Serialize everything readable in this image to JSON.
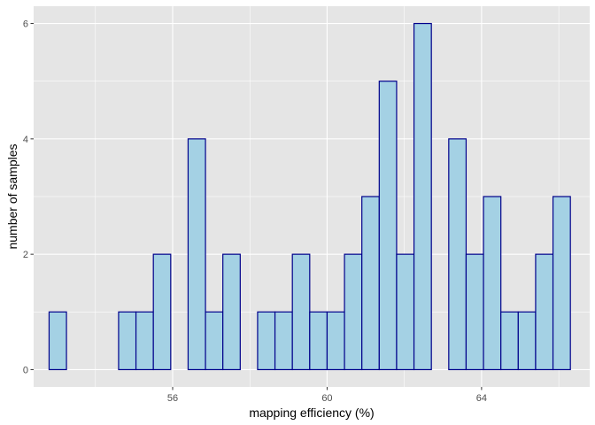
{
  "chart_data": {
    "type": "bar",
    "subtype": "histogram",
    "title": "",
    "xlabel": "mapping efficiency (%)",
    "ylabel": "number of samples",
    "xlim": [
      52.4,
      66.8
    ],
    "ylim": [
      -0.3,
      6.3
    ],
    "x_ticks": [
      56,
      60,
      64
    ],
    "x_tick_labels": [
      "56",
      "60",
      "64"
    ],
    "y_ticks": [
      0,
      2,
      4,
      6
    ],
    "y_tick_labels": [
      "0",
      "2",
      "4",
      "6"
    ],
    "bin_start": 52.8,
    "bin_width": 0.45,
    "values": [
      1,
      0,
      0,
      0,
      1,
      1,
      2,
      0,
      4,
      1,
      2,
      0,
      1,
      1,
      2,
      1,
      1,
      2,
      3,
      5,
      2,
      6,
      0,
      4,
      2,
      3,
      1,
      1,
      2,
      3
    ],
    "grid": true,
    "legend": "none",
    "colors": {
      "panel": "#e5e5e5",
      "grid": "#ffffff",
      "bar_fill": "#a4d1e4",
      "bar_stroke": "#00008b",
      "text": "#4d4d4d"
    }
  }
}
